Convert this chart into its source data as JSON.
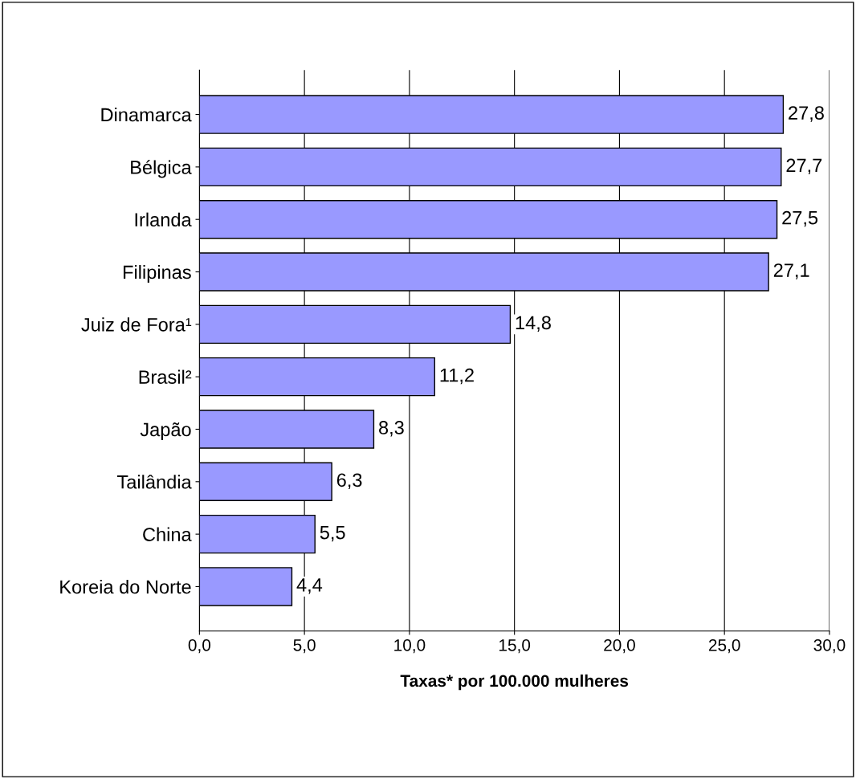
{
  "chart_data": {
    "type": "bar",
    "orientation": "horizontal",
    "xlabel": "Taxas* por 100.000 mulheres",
    "categories": [
      "Dinamarca",
      "Bélgica",
      "Irlanda",
      "Filipinas",
      "Juiz de Fora¹",
      "Brasil²",
      "Japão",
      "Tailândia",
      "China",
      "Koreia do Norte"
    ],
    "values": [
      27.8,
      27.7,
      27.5,
      27.1,
      14.8,
      11.2,
      8.3,
      6.3,
      5.5,
      4.4
    ],
    "value_labels": [
      "27,8",
      "27,7",
      "27,5",
      "27,1",
      "14,8",
      "11,2",
      "8,3",
      "6,3",
      "5,5",
      "4,4"
    ],
    "color": "#9999ff",
    "xlim": [
      0,
      30
    ],
    "xticks": [
      {
        "value": 0,
        "label": "0,0"
      },
      {
        "value": 5,
        "label": "5,0"
      },
      {
        "value": 10,
        "label": "10,0"
      },
      {
        "value": 15,
        "label": "15,0"
      },
      {
        "value": 20,
        "label": "20,0"
      },
      {
        "value": 25,
        "label": "25,0"
      },
      {
        "value": 30,
        "label": "30,0"
      }
    ],
    "grid": "x",
    "legend": false
  }
}
